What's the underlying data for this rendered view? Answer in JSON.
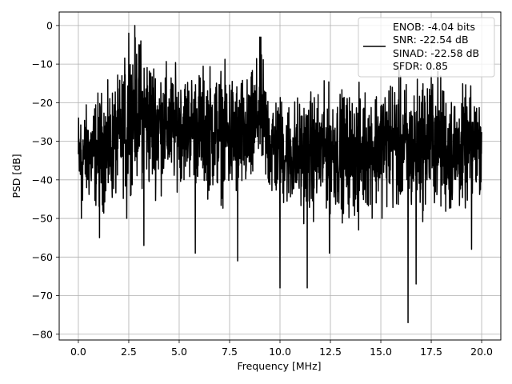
{
  "chart_data": {
    "type": "line",
    "title": "",
    "xlabel": "Frequency [MHz]",
    "ylabel": "PSD [dB]",
    "xlim": [
      -0.95,
      20.95
    ],
    "ylim": [
      -81.5,
      3.5
    ],
    "xticks": [
      0.0,
      2.5,
      5.0,
      7.5,
      10.0,
      12.5,
      15.0,
      17.5,
      20.0
    ],
    "xtick_labels": [
      "0.0",
      "2.5",
      "5.0",
      "7.5",
      "10.0",
      "12.5",
      "15.0",
      "17.5",
      "20.0"
    ],
    "yticks": [
      0,
      -10,
      -20,
      -30,
      -40,
      -50,
      -60,
      -70,
      -80
    ],
    "ytick_labels": [
      "0",
      "−10",
      "−20",
      "−30",
      "−40",
      "−50",
      "−60",
      "−70",
      "−80"
    ],
    "grid": true,
    "legend_position": "top-right",
    "series": [
      {
        "name": "ENOB: -4.04 bits\nSNR: -22.54 dB\nSINAD: -22.58 dB\nSFDR: 0.85",
        "color": "#000000",
        "legend_lines": [
          "ENOB: -4.04 bits",
          "SNR: -22.54 dB",
          "SINAD: -22.58 dB",
          "SFDR: 0.85"
        ],
        "x_range": [
          0.0,
          20.0
        ],
        "typical_band_db": [
          -42,
          -18
        ],
        "envelope": [
          {
            "x": 0.0,
            "hi": -19,
            "lo": -50
          },
          {
            "x": 0.5,
            "hi": -19,
            "lo": -48
          },
          {
            "x": 1.0,
            "hi": -15,
            "lo": -50
          },
          {
            "x": 1.5,
            "hi": -14,
            "lo": -50
          },
          {
            "x": 2.0,
            "hi": -12,
            "lo": -46
          },
          {
            "x": 2.5,
            "hi": -3,
            "lo": -45
          },
          {
            "x": 2.8,
            "hi": 0,
            "lo": -42
          },
          {
            "x": 3.5,
            "hi": -4,
            "lo": -46
          },
          {
            "x": 4.5,
            "hi": -9,
            "lo": -44
          },
          {
            "x": 5.5,
            "hi": -10,
            "lo": -42
          },
          {
            "x": 6.5,
            "hi": -8,
            "lo": -46
          },
          {
            "x": 7.5,
            "hi": -9,
            "lo": -48
          },
          {
            "x": 8.5,
            "hi": -12,
            "lo": -47
          },
          {
            "x": 9.0,
            "hi": -3,
            "lo": -40
          },
          {
            "x": 9.5,
            "hi": -14,
            "lo": -48
          },
          {
            "x": 10.5,
            "hi": -17,
            "lo": -50
          },
          {
            "x": 11.5,
            "hi": -15,
            "lo": -52
          },
          {
            "x": 12.5,
            "hi": -14,
            "lo": -50
          },
          {
            "x": 13.5,
            "hi": -15,
            "lo": -52
          },
          {
            "x": 14.5,
            "hi": -14,
            "lo": -50
          },
          {
            "x": 15.5,
            "hi": -10,
            "lo": -50
          },
          {
            "x": 16.5,
            "hi": -13,
            "lo": -52
          },
          {
            "x": 17.5,
            "hi": -8,
            "lo": -50
          },
          {
            "x": 18.5,
            "hi": -14,
            "lo": -52
          },
          {
            "x": 19.5,
            "hi": -15,
            "lo": -48
          },
          {
            "x": 20.0,
            "hi": -17,
            "lo": -44
          }
        ],
        "notable_dips": [
          {
            "x": 0.15,
            "y": -50
          },
          {
            "x": 1.05,
            "y": -55
          },
          {
            "x": 2.4,
            "y": -50
          },
          {
            "x": 3.25,
            "y": -57
          },
          {
            "x": 5.8,
            "y": -59
          },
          {
            "x": 7.9,
            "y": -61
          },
          {
            "x": 10.0,
            "y": -68
          },
          {
            "x": 11.35,
            "y": -68
          },
          {
            "x": 12.45,
            "y": -59
          },
          {
            "x": 13.9,
            "y": -53
          },
          {
            "x": 16.35,
            "y": -77
          },
          {
            "x": 16.75,
            "y": -67
          },
          {
            "x": 19.5,
            "y": -58
          }
        ],
        "notable_peaks": [
          {
            "x": 2.8,
            "y": 0
          },
          {
            "x": 2.5,
            "y": -2
          },
          {
            "x": 3.1,
            "y": -4
          },
          {
            "x": 9.05,
            "y": -3
          }
        ]
      }
    ]
  }
}
